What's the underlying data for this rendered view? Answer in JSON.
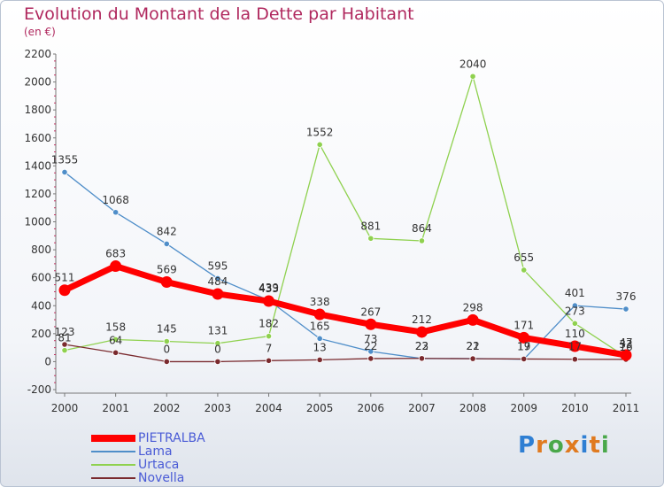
{
  "title": "Evolution du Montant de la Dette par Habitant",
  "subtitle": "(en €)",
  "brand": {
    "letters": [
      "P",
      "r",
      "o",
      "x",
      "i",
      "t",
      "i"
    ],
    "colors": [
      "#2f7fd3",
      "#e07a1f",
      "#4aa84a",
      "#e07a1f",
      "#2f7fd3",
      "#e07a1f",
      "#4aa84a"
    ]
  },
  "chart_data": {
    "type": "line",
    "x": [
      "2000",
      "2001",
      "2002",
      "2003",
      "2004",
      "2005",
      "2006",
      "2007",
      "2008",
      "2009",
      "2010",
      "2011"
    ],
    "ylim": [
      -200,
      2200
    ],
    "yticks": [
      "-200",
      "0",
      "200",
      "400",
      "600",
      "800",
      "1000",
      "1200",
      "1400",
      "1600",
      "1800",
      "2000",
      "2200"
    ],
    "grid": false,
    "legend_position": "bottom-left",
    "series": [
      {
        "name": "Lama",
        "color": "#4f8ec9",
        "values": [
          1355,
          1068,
          842,
          595,
          439,
          165,
          73,
          22,
          22,
          17,
          401,
          376
        ],
        "labels": [
          "1355",
          "1068",
          "842",
          "595",
          "439",
          "165",
          "73",
          "22",
          "22",
          "17",
          "401",
          "376"
        ]
      },
      {
        "name": "Urtaca",
        "color": "#8fd14f",
        "values": [
          81,
          158,
          145,
          131,
          182,
          1552,
          881,
          864,
          2040,
          655,
          273,
          33
        ],
        "labels": [
          "81",
          "158",
          "145",
          "131",
          "182",
          "1552",
          "881",
          "864",
          "2040",
          "655",
          "273",
          "33"
        ]
      },
      {
        "name": "Novella",
        "color": "#7a2a2e",
        "values": [
          123,
          64,
          0,
          0,
          7,
          13,
          22,
          23,
          21,
          19,
          17,
          16
        ],
        "labels": [
          "123",
          "64",
          "0",
          "0",
          "7",
          "13",
          "22",
          "23",
          "21",
          "19",
          "17",
          "16"
        ]
      },
      {
        "name": "PIETRALBA",
        "color": "#ff0000",
        "values": [
          511,
          683,
          569,
          484,
          433,
          338,
          267,
          212,
          298,
          171,
          110,
          47
        ],
        "labels": [
          "511",
          "683",
          "569",
          "484",
          "433",
          "338",
          "267",
          "212",
          "298",
          "171",
          "110",
          "47"
        ]
      }
    ],
    "legend": [
      {
        "name": "PIETRALBA",
        "color": "#ff0000"
      },
      {
        "name": "Lama",
        "color": "#4f8ec9"
      },
      {
        "name": "Urtaca",
        "color": "#8fd14f"
      },
      {
        "name": "Novella",
        "color": "#7a2a2e"
      }
    ]
  }
}
